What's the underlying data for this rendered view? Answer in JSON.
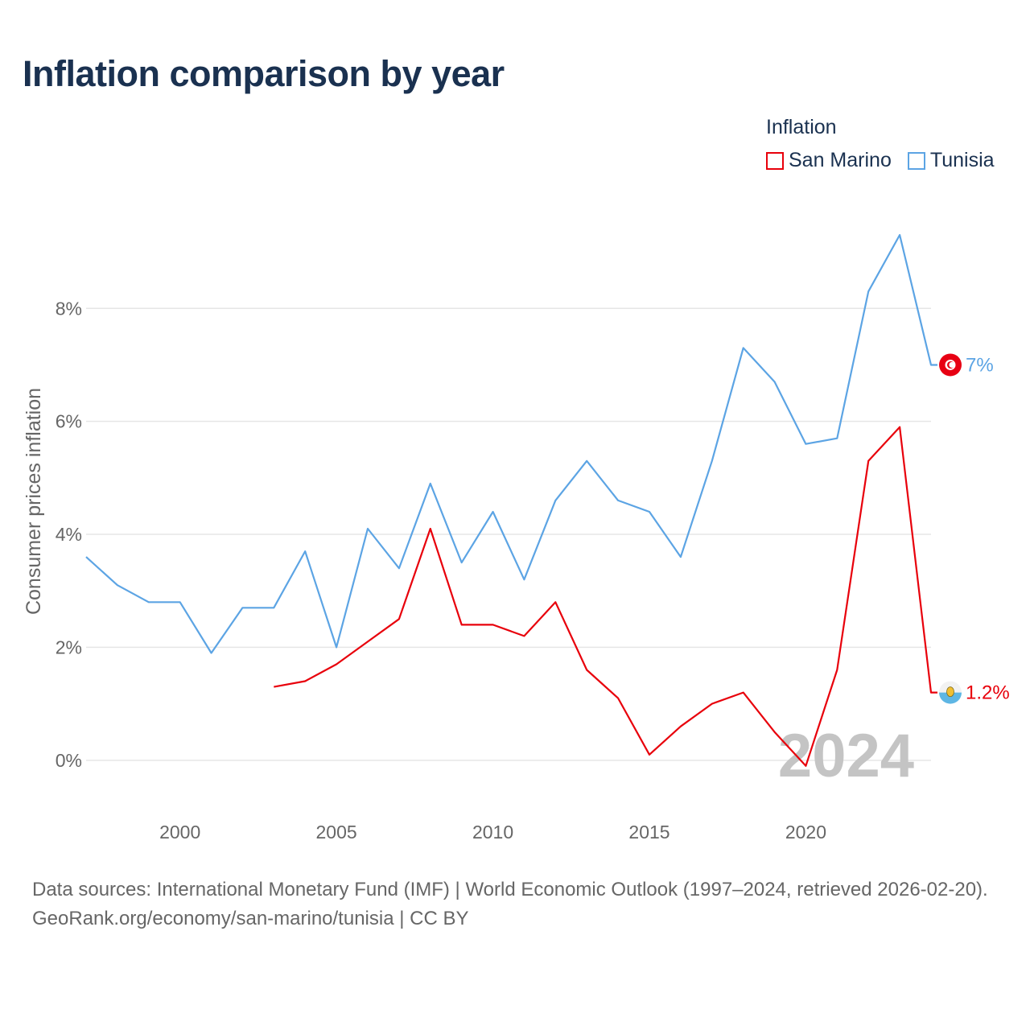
{
  "title": "Inflation comparison by year",
  "legend": {
    "title": "Inflation",
    "items": [
      {
        "label": "San Marino",
        "color": "#e8000b"
      },
      {
        "label": "Tunisia",
        "color": "#5ca4e4"
      }
    ]
  },
  "footer": {
    "sources": "Data sources: International Monetary Fund (IMF) | World Economic Outlook (1997–2024, retrieved 2026-02-20).",
    "credit": "GeoRank.org/economy/san-marino/tunisia | CC BY"
  },
  "chart_data": {
    "type": "line",
    "title": "Inflation comparison by year",
    "xlabel": "",
    "ylabel": "Consumer prices inflation",
    "xlim": [
      1997,
      2024
    ],
    "ylim": [
      -0.9,
      9.3
    ],
    "x_ticks": [
      2000,
      2005,
      2010,
      2015,
      2020
    ],
    "y_ticks": [
      0,
      2,
      4,
      6,
      8
    ],
    "y_tick_labels": [
      "0%",
      "2%",
      "4%",
      "6%",
      "8%"
    ],
    "grid": true,
    "watermark_year": "2024",
    "series": [
      {
        "name": "San Marino",
        "color": "#e8000b",
        "x": [
          2003,
          2004,
          2005,
          2006,
          2007,
          2008,
          2009,
          2010,
          2011,
          2012,
          2013,
          2014,
          2015,
          2016,
          2017,
          2018,
          2019,
          2020,
          2021,
          2022,
          2023,
          2024
        ],
        "values": [
          1.3,
          1.4,
          1.7,
          2.1,
          2.5,
          4.1,
          2.4,
          2.4,
          2.2,
          2.8,
          1.6,
          1.1,
          0.1,
          0.6,
          1.0,
          1.2,
          0.5,
          -0.1,
          1.6,
          5.3,
          5.9,
          1.2
        ],
        "end_label": "1.2%",
        "flag": "san-marino-flag-icon"
      },
      {
        "name": "Tunisia",
        "color": "#5ca4e4",
        "x": [
          1997,
          1998,
          1999,
          2000,
          2001,
          2002,
          2003,
          2004,
          2005,
          2006,
          2007,
          2008,
          2009,
          2010,
          2011,
          2012,
          2013,
          2014,
          2015,
          2016,
          2017,
          2018,
          2019,
          2020,
          2021,
          2022,
          2023,
          2024
        ],
        "values": [
          3.6,
          3.1,
          2.8,
          2.8,
          1.9,
          2.7,
          2.7,
          3.7,
          2.0,
          4.1,
          3.4,
          4.9,
          3.5,
          4.4,
          3.2,
          4.6,
          5.3,
          4.6,
          4.4,
          3.6,
          5.3,
          7.3,
          6.7,
          5.6,
          5.7,
          8.3,
          9.3,
          7.0
        ],
        "end_label": "7%",
        "flag": "tunisia-flag-icon"
      }
    ]
  }
}
